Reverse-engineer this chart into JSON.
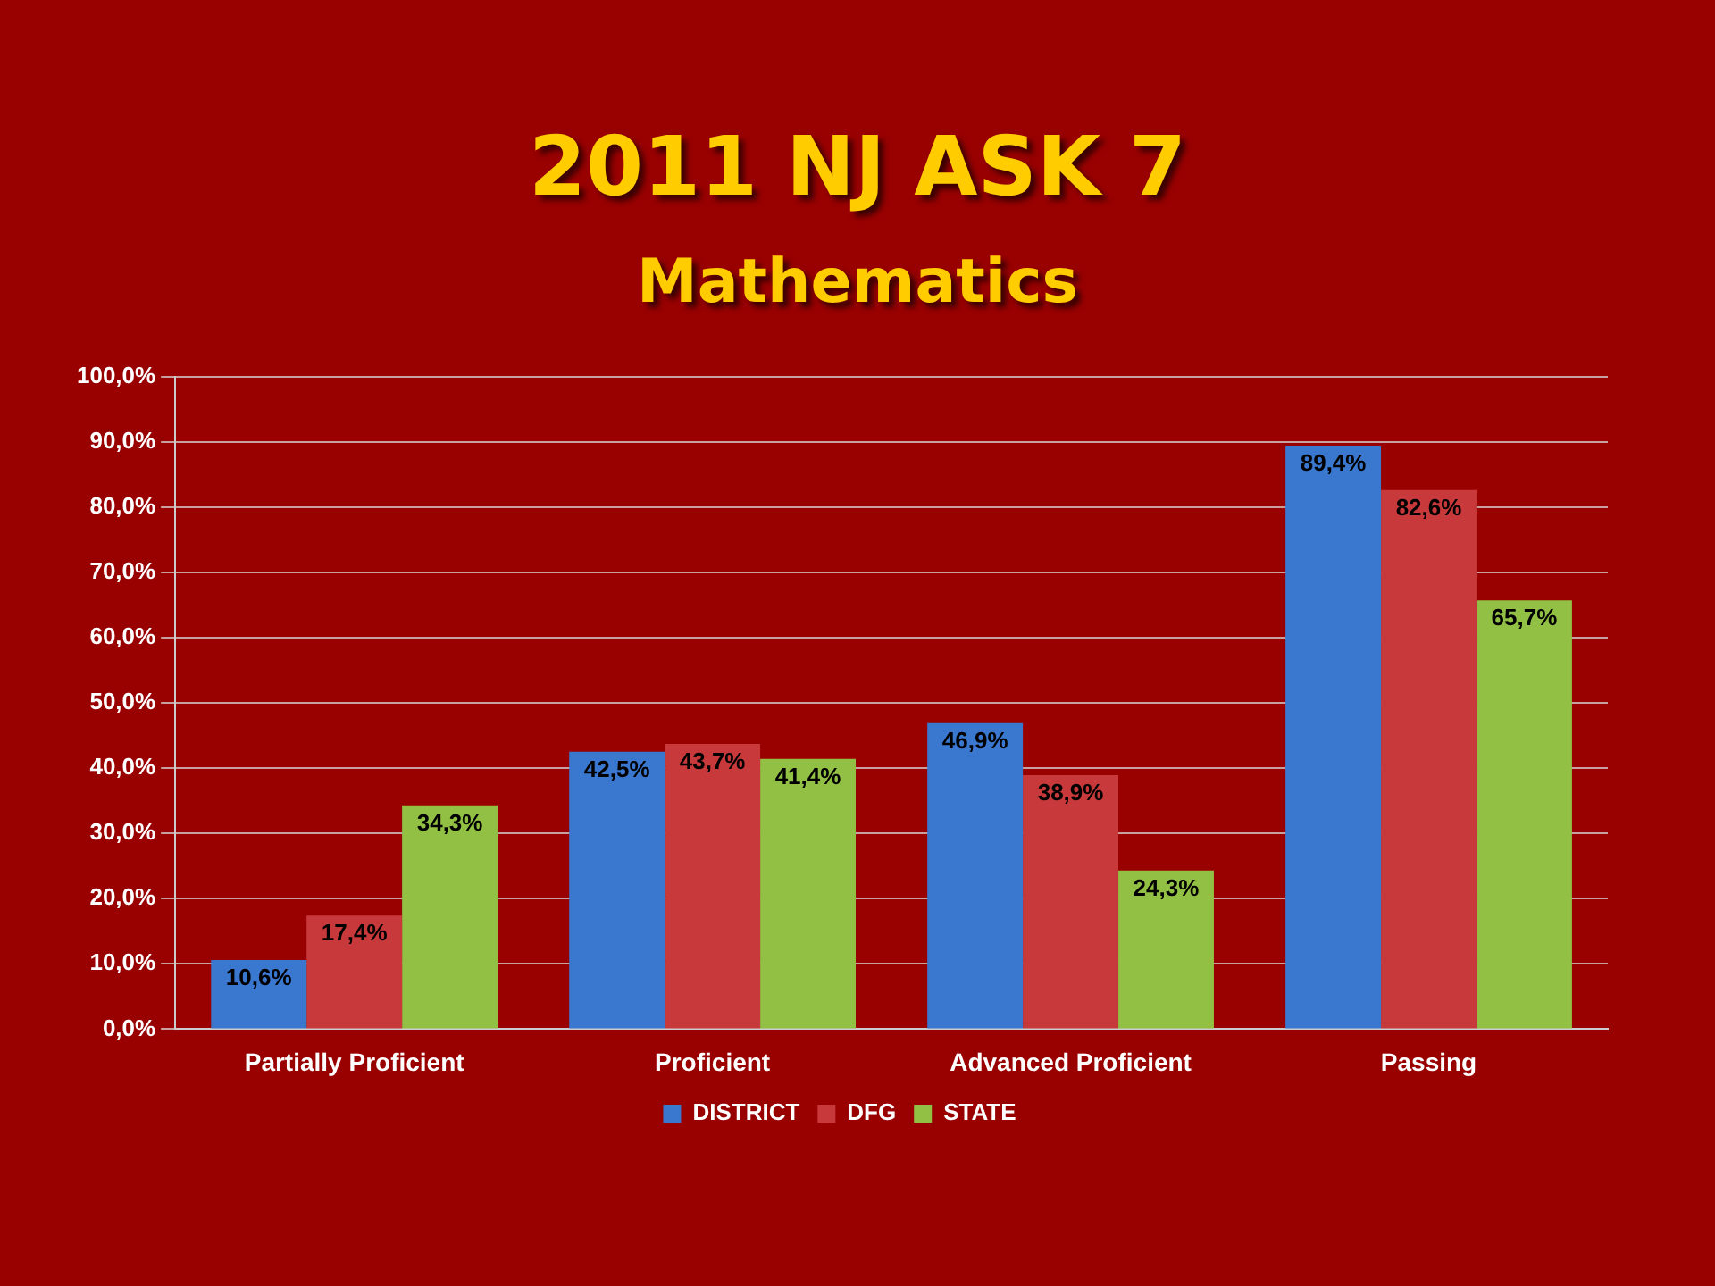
{
  "chart_data": {
    "type": "bar",
    "title": "2011 NJ ASK 7",
    "subtitle": "Mathematics",
    "categories": [
      "Partially Proficient",
      "Proficient",
      "Advanced Proficient",
      "Passing"
    ],
    "series": [
      {
        "name": "DISTRICT",
        "color": "#3a78d0",
        "values": [
          10.6,
          42.5,
          46.9,
          89.4
        ],
        "value_labels": [
          "10,6%",
          "42,5%",
          "46,9%",
          "89,4%"
        ]
      },
      {
        "name": "DFG",
        "color": "#c8393b",
        "values": [
          17.4,
          43.7,
          38.9,
          82.6
        ],
        "value_labels": [
          "17,4%",
          "43,7%",
          "38,9%",
          "82,6%"
        ]
      },
      {
        "name": "STATE",
        "color": "#92c045",
        "values": [
          34.3,
          41.4,
          24.3,
          65.7
        ],
        "value_labels": [
          "34,3%",
          "41,4%",
          "24,3%",
          "65,7%"
        ]
      }
    ],
    "ylim": [
      0,
      100
    ],
    "yticks": [
      {
        "value": 0,
        "label": "0,0%"
      },
      {
        "value": 10,
        "label": "10,0%"
      },
      {
        "value": 20,
        "label": "20,0%"
      },
      {
        "value": 30,
        "label": "30,0%"
      },
      {
        "value": 40,
        "label": "40,0%"
      },
      {
        "value": 50,
        "label": "50,0%"
      },
      {
        "value": 60,
        "label": "60,0%"
      },
      {
        "value": 70,
        "label": "70,0%"
      },
      {
        "value": 80,
        "label": "80,0%"
      },
      {
        "value": 90,
        "label": "90,0%"
      },
      {
        "value": 100,
        "label": "100,0%"
      }
    ],
    "grid": "y",
    "legend": "bottom"
  }
}
